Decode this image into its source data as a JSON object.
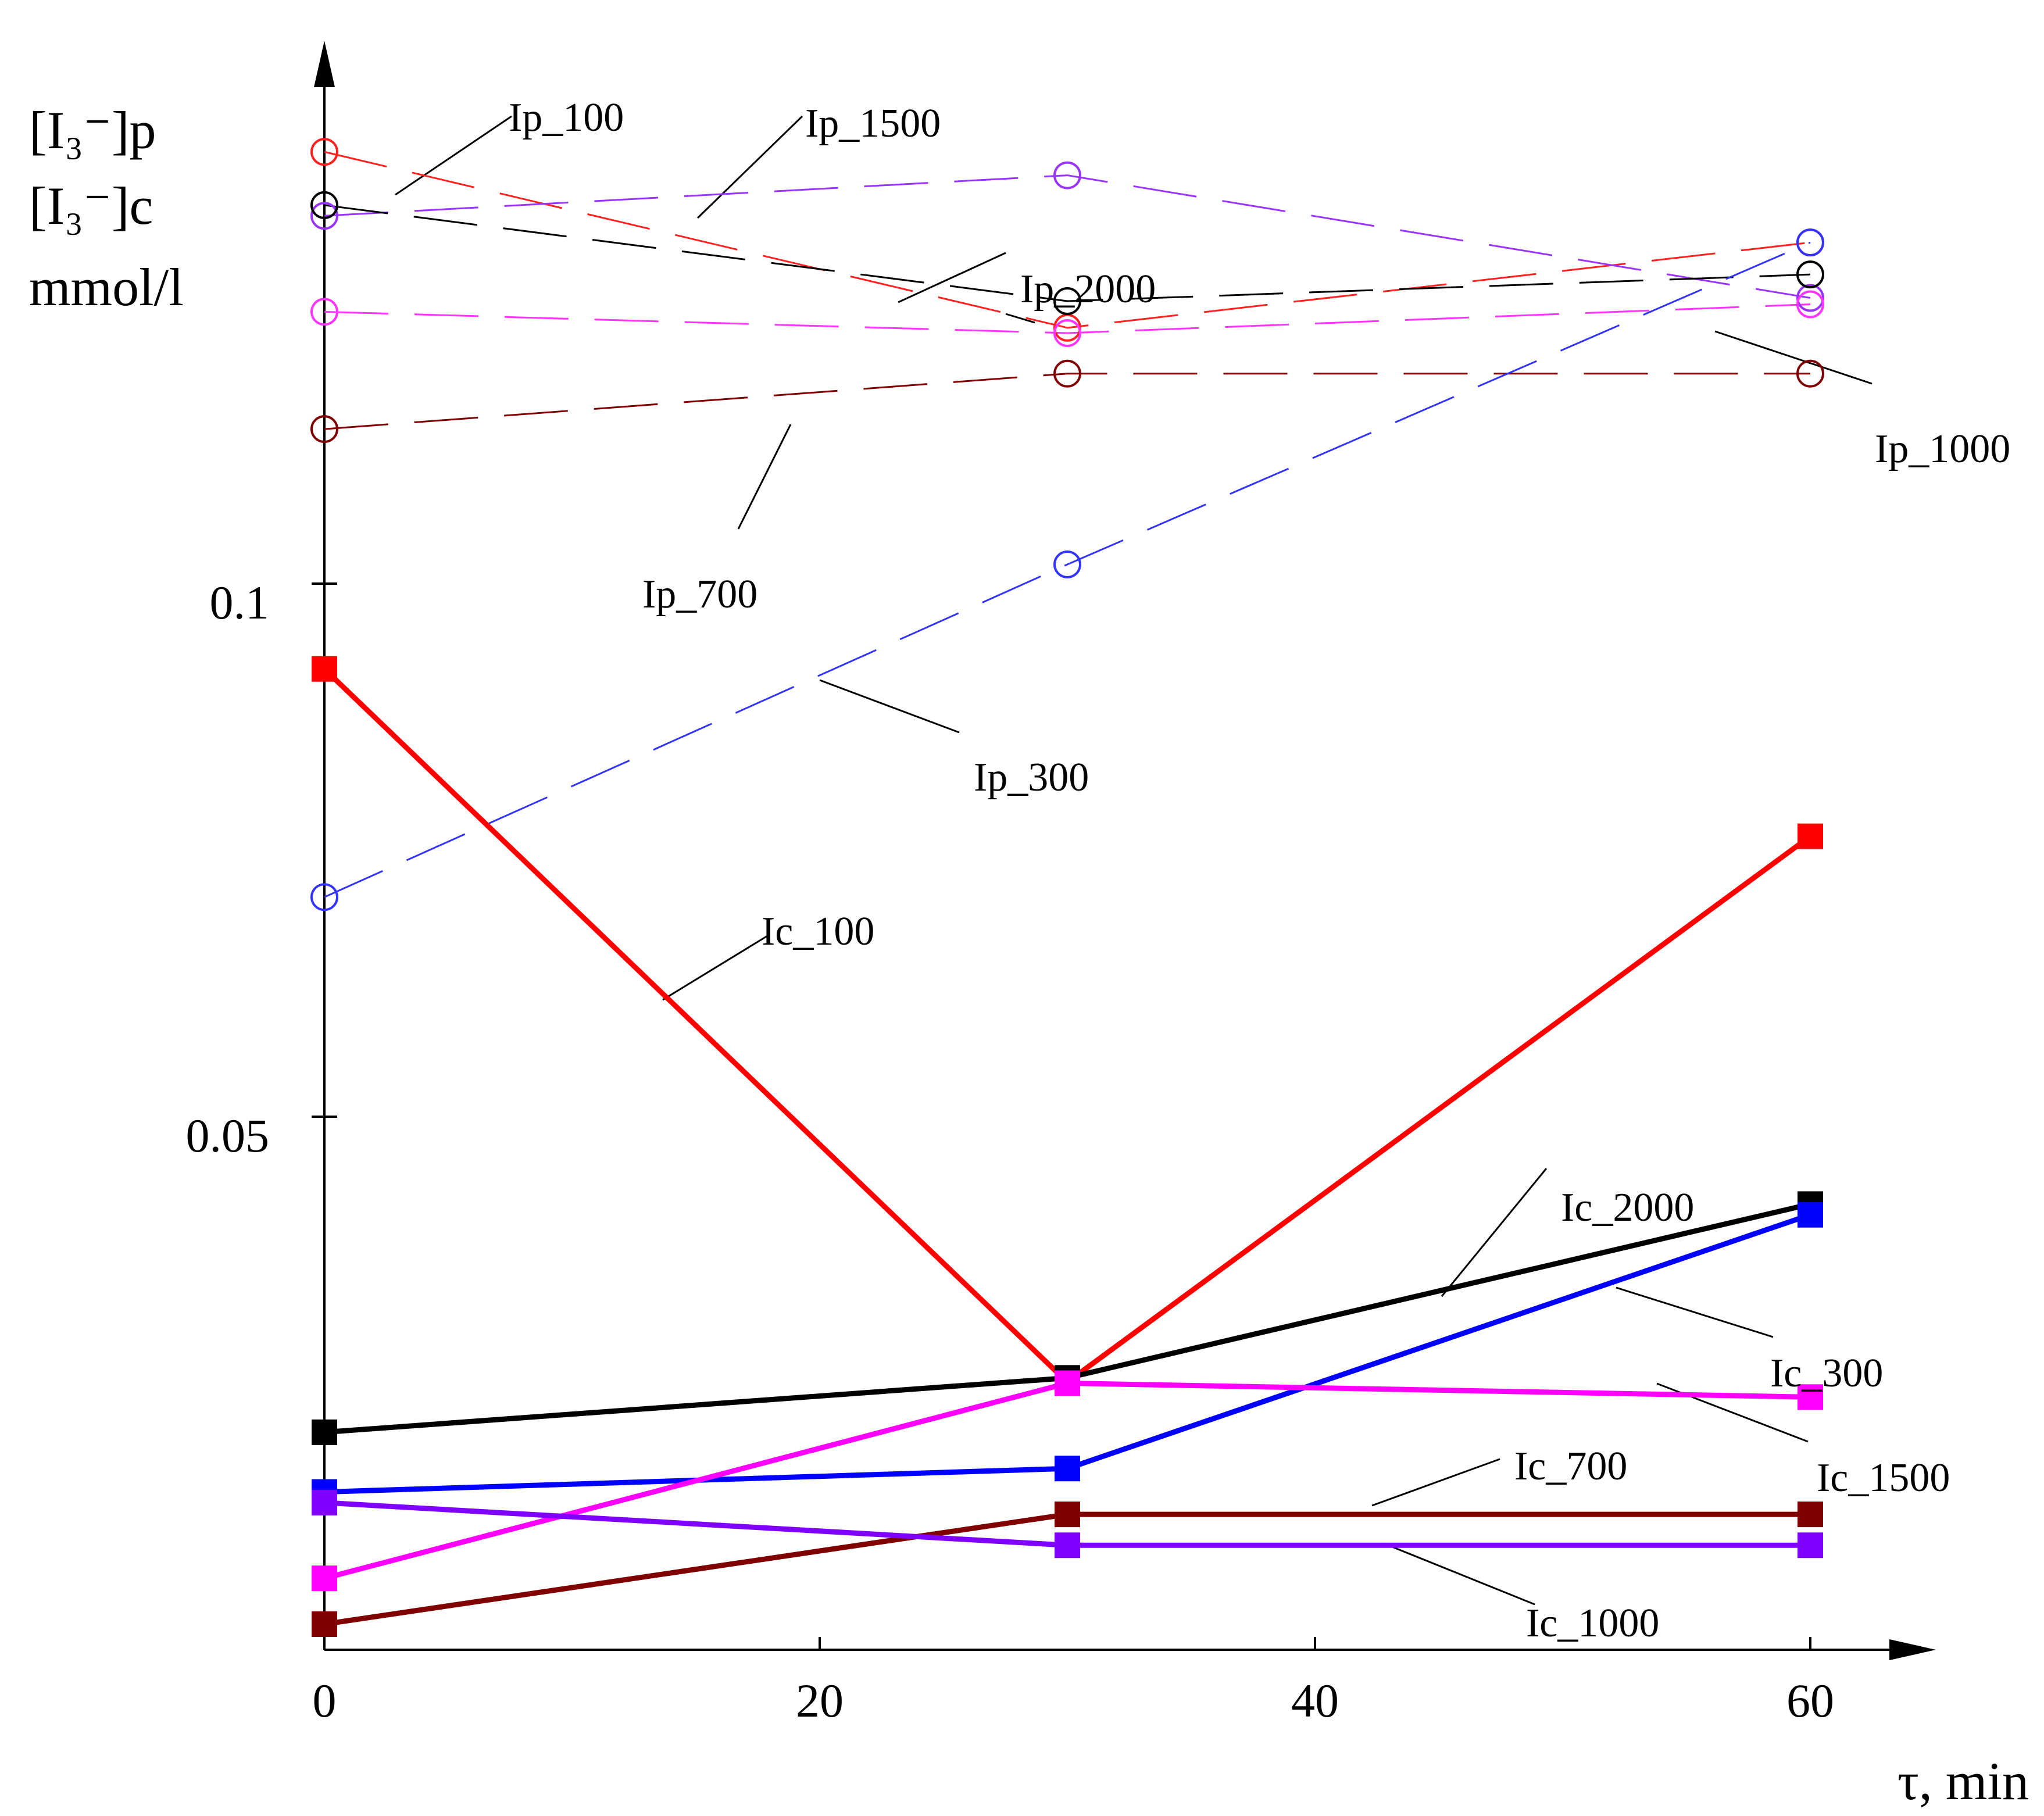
{
  "chart_data": {
    "type": "line",
    "title": "",
    "ylabel_lines": [
      "[I₃⁻]p",
      "[I₃⁻]c",
      "mmol/l"
    ],
    "xlabel": "τ, min",
    "xlim": [
      0,
      65
    ],
    "ylim": [
      0,
      0.151
    ],
    "x_ticks": [
      0,
      20,
      40,
      60
    ],
    "x_tick_labels": [
      "0",
      "20",
      "40",
      "60"
    ],
    "y_ticks": [
      0.05,
      0.1
    ],
    "y_tick_labels": [
      "0.05",
      "0.1"
    ],
    "x": [
      0,
      30,
      60
    ],
    "series": [
      {
        "name": "Ip_100",
        "values": [
          0.1405,
          0.124,
          0.132
        ],
        "color": "#ff2020",
        "style": "dashed",
        "marker": "circle"
      },
      {
        "name": "Ip_1500",
        "values": [
          0.1345,
          0.1383,
          0.1268
        ],
        "color": "#9933ff",
        "style": "dashed",
        "marker": "circle"
      },
      {
        "name": "Ip_2000",
        "values": [
          0.1355,
          0.1265,
          0.129
        ],
        "color": "#000000",
        "style": "dashed",
        "marker": "circle"
      },
      {
        "name": "Ip_1000",
        "values": [
          0.1255,
          0.1235,
          0.1262
        ],
        "color": "#ff33ff",
        "style": "dashed",
        "marker": "circle"
      },
      {
        "name": "Ip_700",
        "values": [
          0.1145,
          0.1197,
          0.1197
        ],
        "color": "#800000",
        "style": "dashed",
        "marker": "circle"
      },
      {
        "name": "Ip_300",
        "values": [
          0.0706,
          0.1018,
          0.132
        ],
        "color": "#3333ff",
        "style": "dashed",
        "marker": "circle"
      },
      {
        "name": "Ic_100",
        "values": [
          0.092,
          0.0251,
          0.0763
        ],
        "color": "#ff0000",
        "style": "solid",
        "marker": "square"
      },
      {
        "name": "Ic_2000",
        "values": [
          0.0204,
          0.0255,
          0.0418
        ],
        "color": "#000000",
        "style": "solid",
        "marker": "square"
      },
      {
        "name": "Ic_300",
        "values": [
          0.0148,
          0.017,
          0.0408
        ],
        "color": "#0000ff",
        "style": "solid",
        "marker": "square"
      },
      {
        "name": "Ic_1500",
        "values": [
          0.0067,
          0.025,
          0.0237
        ],
        "color": "#ff00ff",
        "style": "solid",
        "marker": "square"
      },
      {
        "name": "Ic_700",
        "values": [
          0.0024,
          0.0127,
          0.0127
        ],
        "color": "#800000",
        "style": "solid",
        "marker": "square"
      },
      {
        "name": "Ic_1000",
        "values": [
          0.0138,
          0.0098,
          0.0098
        ],
        "color": "#8000ff",
        "style": "solid",
        "marker": "square"
      }
    ]
  }
}
